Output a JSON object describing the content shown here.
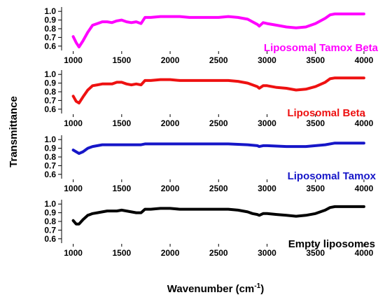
{
  "chart_data": {
    "type": "line",
    "title": "",
    "xlabel": "Wavenumber (cm",
    "xlabel_sup": "-1",
    "xlabel_end": ")",
    "ylabel": "Transmittance",
    "xlim": [
      880,
      4080
    ],
    "x_ticks": [
      "1000",
      "1500",
      "2000",
      "2500",
      "3000",
      "3500",
      "4000"
    ],
    "y_ticks": [
      "0.6",
      "0.7",
      "0.8",
      "0.9",
      "1.0"
    ],
    "ylim": [
      0.55,
      1.05
    ],
    "grid": false,
    "panels": [
      {
        "name": "Liposomal Tamox Beta",
        "color": "#ff00ff",
        "x": [
          1000,
          1030,
          1060,
          1100,
          1150,
          1200,
          1250,
          1300,
          1350,
          1400,
          1450,
          1500,
          1550,
          1600,
          1650,
          1700,
          1740,
          1800,
          1900,
          2000,
          2100,
          2200,
          2300,
          2400,
          2500,
          2600,
          2700,
          2800,
          2850,
          2900,
          2920,
          2960,
          3000,
          3100,
          3200,
          3300,
          3400,
          3500,
          3600,
          3650,
          3700,
          3800,
          3900,
          4000
        ],
        "y": [
          0.71,
          0.64,
          0.59,
          0.66,
          0.76,
          0.84,
          0.86,
          0.88,
          0.88,
          0.87,
          0.89,
          0.9,
          0.88,
          0.87,
          0.88,
          0.86,
          0.93,
          0.93,
          0.94,
          0.94,
          0.94,
          0.93,
          0.93,
          0.93,
          0.93,
          0.94,
          0.93,
          0.91,
          0.88,
          0.85,
          0.83,
          0.87,
          0.86,
          0.84,
          0.82,
          0.81,
          0.82,
          0.86,
          0.92,
          0.96,
          0.97,
          0.97,
          0.97,
          0.97
        ]
      },
      {
        "name": "Liposomal Beta",
        "color": "#ee1111",
        "x": [
          1000,
          1030,
          1060,
          1100,
          1150,
          1200,
          1250,
          1300,
          1350,
          1400,
          1450,
          1500,
          1550,
          1600,
          1650,
          1700,
          1740,
          1800,
          1900,
          2000,
          2100,
          2200,
          2300,
          2400,
          2500,
          2600,
          2700,
          2800,
          2850,
          2900,
          2920,
          2960,
          3000,
          3100,
          3200,
          3300,
          3400,
          3500,
          3600,
          3650,
          3700,
          3800,
          3900,
          4000
        ],
        "y": [
          0.75,
          0.69,
          0.67,
          0.74,
          0.82,
          0.87,
          0.88,
          0.89,
          0.89,
          0.89,
          0.91,
          0.91,
          0.89,
          0.88,
          0.89,
          0.88,
          0.93,
          0.93,
          0.94,
          0.94,
          0.93,
          0.93,
          0.93,
          0.93,
          0.93,
          0.93,
          0.92,
          0.9,
          0.88,
          0.86,
          0.84,
          0.87,
          0.87,
          0.85,
          0.84,
          0.82,
          0.83,
          0.86,
          0.91,
          0.95,
          0.96,
          0.96,
          0.96,
          0.96
        ]
      },
      {
        "name": "Liposomal Tamox",
        "color": "#1616c8",
        "x": [
          1000,
          1030,
          1060,
          1100,
          1150,
          1200,
          1250,
          1300,
          1350,
          1400,
          1500,
          1600,
          1700,
          1740,
          1800,
          1900,
          2000,
          2200,
          2400,
          2600,
          2800,
          2900,
          2920,
          2960,
          3000,
          3200,
          3300,
          3400,
          3500,
          3600,
          3700,
          3800,
          4000
        ],
        "y": [
          0.88,
          0.86,
          0.84,
          0.86,
          0.9,
          0.92,
          0.93,
          0.94,
          0.94,
          0.94,
          0.94,
          0.94,
          0.94,
          0.95,
          0.95,
          0.95,
          0.95,
          0.95,
          0.95,
          0.95,
          0.94,
          0.93,
          0.92,
          0.93,
          0.93,
          0.92,
          0.92,
          0.92,
          0.93,
          0.94,
          0.96,
          0.96,
          0.96
        ]
      },
      {
        "name": "Empty liposomes",
        "color": "#000000",
        "x": [
          1000,
          1030,
          1060,
          1100,
          1150,
          1200,
          1250,
          1300,
          1350,
          1400,
          1450,
          1500,
          1550,
          1600,
          1650,
          1700,
          1740,
          1800,
          1900,
          2000,
          2100,
          2200,
          2300,
          2400,
          2500,
          2600,
          2700,
          2800,
          2850,
          2900,
          2920,
          2960,
          3000,
          3100,
          3200,
          3300,
          3400,
          3500,
          3600,
          3650,
          3700,
          3800,
          3900,
          4000
        ],
        "y": [
          0.81,
          0.77,
          0.77,
          0.82,
          0.87,
          0.89,
          0.9,
          0.91,
          0.92,
          0.92,
          0.92,
          0.93,
          0.92,
          0.91,
          0.9,
          0.9,
          0.94,
          0.94,
          0.95,
          0.95,
          0.94,
          0.94,
          0.94,
          0.94,
          0.94,
          0.94,
          0.93,
          0.91,
          0.89,
          0.88,
          0.87,
          0.89,
          0.89,
          0.88,
          0.87,
          0.86,
          0.87,
          0.89,
          0.93,
          0.96,
          0.97,
          0.97,
          0.97,
          0.97
        ]
      }
    ]
  }
}
